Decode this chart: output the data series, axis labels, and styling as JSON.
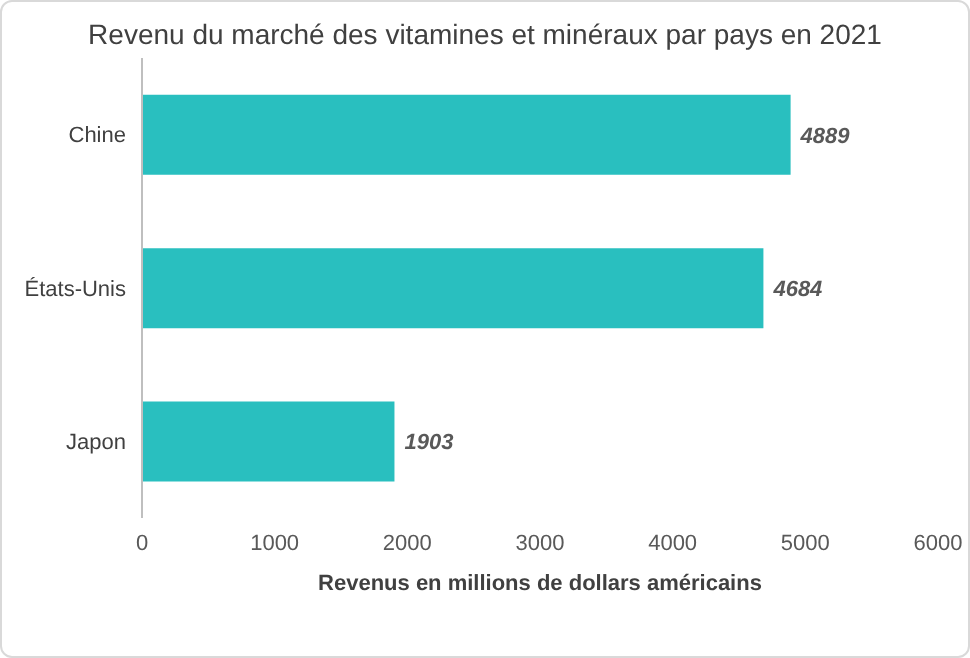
{
  "chart_data": {
    "type": "bar",
    "orientation": "horizontal",
    "title": "Revenu du marché des vitamines et minéraux par pays en 2021",
    "xlabel": "Revenus en millions de dollars américains",
    "categories": [
      "Chine",
      "États-Unis",
      "Japon"
    ],
    "values": [
      4889,
      4684,
      1903
    ],
    "color": "#29bfbf",
    "xlim": [
      0,
      6000
    ],
    "xticks": [
      0,
      1000,
      2000,
      3000,
      4000,
      5000,
      6000
    ],
    "grid": false,
    "data_labels": true
  }
}
